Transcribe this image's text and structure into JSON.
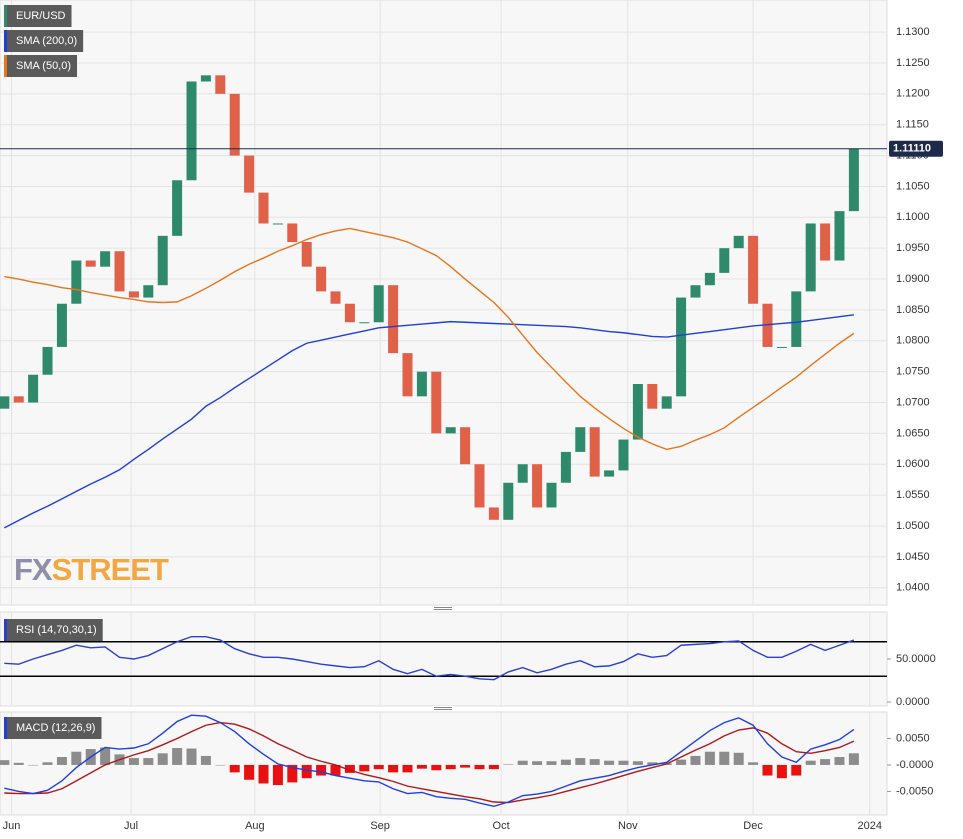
{
  "chart_data": [
    {
      "type": "candlestick",
      "first_open": 1.069,
      "xlim": [
        -0.3,
        61.3
      ],
      "xticks": [
        {
          "value": 0.5,
          "label": "Jun"
        },
        {
          "value": 8.8,
          "label": "Jul"
        },
        {
          "value": 17.4,
          "label": "Aug"
        },
        {
          "value": 26.1,
          "label": "Sep"
        },
        {
          "value": 34.5,
          "label": "Oct"
        },
        {
          "value": 43.3,
          "label": "Nov"
        },
        {
          "value": 52,
          "label": "Dec"
        },
        {
          "value": 60.1,
          "label": "2024"
        }
      ],
      "ylim": [
        1.0372,
        1.1352
      ],
      "yticks": [
        {
          "value": 1.13,
          "label": "1.1300"
        },
        {
          "value": 1.125,
          "label": "1.1250"
        },
        {
          "value": 1.12,
          "label": "1.1200"
        },
        {
          "value": 1.115,
          "label": "1.1150"
        },
        {
          "value": 1.11,
          "label": "1.1100"
        },
        {
          "value": 1.105,
          "label": "1.1050"
        },
        {
          "value": 1.1,
          "label": "1.1000"
        },
        {
          "value": 1.095,
          "label": "1.0950"
        },
        {
          "value": 1.09,
          "label": "1.0900"
        },
        {
          "value": 1.085,
          "label": "1.0850"
        },
        {
          "value": 1.08,
          "label": "1.0800"
        },
        {
          "value": 1.075,
          "label": "1.0750"
        },
        {
          "value": 1.07,
          "label": "1.0700"
        },
        {
          "value": 1.065,
          "label": "1.0650"
        },
        {
          "value": 1.06,
          "label": "1.0600"
        },
        {
          "value": 1.055,
          "label": "1.0550"
        },
        {
          "value": 1.05,
          "label": "1.0500"
        },
        {
          "value": 1.045,
          "label": "1.0450"
        },
        {
          "value": 1.04,
          "label": "1.0400"
        }
      ],
      "grid": true,
      "last_value": {
        "value": 1.1111,
        "label": "1.11110"
      },
      "watermark": [
        "FX",
        "STREET"
      ],
      "series": [
        {
          "name": "EUR/USD",
          "color": "#2f8a6b",
          "down_color": "#e0604a",
          "values": [
            1.071,
            1.07,
            1.0745,
            1.079,
            1.086,
            1.093,
            1.092,
            1.0945,
            1.088,
            1.087,
            1.089,
            1.097,
            1.106,
            1.122,
            1.123,
            1.12,
            1.11,
            1.104,
            1.099,
            1.099,
            1.096,
            1.092,
            1.088,
            1.086,
            1.083,
            1.083,
            1.089,
            1.078,
            1.071,
            1.075,
            1.065,
            1.066,
            1.06,
            1.053,
            1.051,
            1.057,
            1.06,
            1.053,
            1.057,
            1.062,
            1.066,
            1.058,
            1.059,
            1.064,
            1.073,
            1.069,
            1.071,
            1.087,
            1.089,
            1.091,
            1.095,
            1.097,
            1.086,
            1.079,
            1.079,
            1.088,
            1.099,
            1.093,
            1.101,
            1.1111
          ]
        },
        {
          "name": "SMA (200,0)",
          "color": "#1f3fd6",
          "values": [
            1.0497,
            1.0509,
            1.0521,
            1.0532,
            1.0544,
            1.0556,
            1.0568,
            1.0579,
            1.0591,
            1.0608,
            1.0624,
            1.0641,
            1.0657,
            1.0673,
            1.0694,
            1.0708,
            1.0724,
            1.0739,
            1.0754,
            1.0769,
            1.0784,
            1.0796,
            1.0801,
            1.0806,
            1.0811,
            1.0816,
            1.0821,
            1.0823,
            1.0825,
            1.0827,
            1.0829,
            1.0831,
            1.083,
            1.0829,
            1.0828,
            1.0827,
            1.0826,
            1.0825,
            1.0824,
            1.0823,
            1.0821,
            1.0818,
            1.0815,
            1.0813,
            1.081,
            1.0807,
            1.0806,
            1.0809,
            1.0812,
            1.0815,
            1.0818,
            1.0821,
            1.0824,
            1.0826,
            1.0828,
            1.083,
            1.0833,
            1.0836,
            1.0839,
            1.0842
          ]
        },
        {
          "name": "SMA (50,0)",
          "color": "#e8751a",
          "values": [
            1.0904,
            1.09,
            1.0895,
            1.0891,
            1.0886,
            1.0883,
            1.0878,
            1.0874,
            1.087,
            1.0867,
            1.0863,
            1.0862,
            1.0863,
            1.0873,
            1.0885,
            1.0898,
            1.0912,
            1.0924,
            1.0934,
            1.0945,
            1.0954,
            1.0964,
            1.0972,
            1.0978,
            1.0982,
            1.0977,
            1.0972,
            1.0967,
            1.096,
            1.0949,
            1.0938,
            1.092,
            1.09,
            1.0881,
            1.0862,
            1.0838,
            1.0809,
            1.0781,
            1.0757,
            1.0733,
            1.071,
            1.0691,
            1.0674,
            1.0658,
            1.0644,
            1.0633,
            1.0624,
            1.0629,
            1.0639,
            1.0648,
            1.0659,
            1.0676,
            1.0692,
            1.0708,
            1.0725,
            1.0741,
            1.076,
            1.0778,
            1.0796,
            1.0812
          ]
        }
      ]
    },
    {
      "type": "line",
      "ylim": [
        0,
        100
      ],
      "yticks": [
        {
          "value": 50,
          "label": "50.0000"
        },
        {
          "value": 0,
          "label": "0.0000"
        }
      ],
      "levels": [
        70,
        30
      ],
      "series": [
        {
          "name": "RSI (14,70,30,1)",
          "color": "#2a3fd0",
          "values": [
            45,
            44,
            50,
            55,
            60,
            66,
            63,
            64,
            52,
            50,
            54,
            62,
            70,
            76,
            76,
            72,
            62,
            56,
            52,
            52,
            50,
            47,
            44,
            42,
            40,
            41,
            48,
            38,
            33,
            38,
            30,
            32,
            30,
            27,
            26,
            35,
            40,
            34,
            38,
            44,
            48,
            41,
            42,
            47,
            56,
            52,
            54,
            66,
            67,
            68,
            70,
            71,
            60,
            52,
            52,
            59,
            67,
            60,
            66,
            72
          ]
        }
      ]
    },
    {
      "type": "macd",
      "ylim": [
        -0.009,
        0.01
      ],
      "yticks": [
        {
          "value": 0.005,
          "label": "0.0050"
        },
        {
          "value": 0,
          "label": "-0.0000"
        },
        {
          "value": -0.005,
          "label": "-0.0050"
        }
      ],
      "series": [
        {
          "name": "MACD (12,26,9)",
          "color": "#1f3fe0",
          "values": [
            -0.0044,
            -0.005,
            -0.0054,
            -0.0048,
            -0.003,
            -0.0005,
            0.0015,
            0.0033,
            0.003,
            0.0032,
            0.004,
            0.006,
            0.0082,
            0.0094,
            0.0092,
            0.008,
            0.0063,
            0.004,
            0.002,
            0.0002,
            -0.0005,
            -0.001,
            -0.0013,
            -0.002,
            -0.0025,
            -0.003,
            -0.0032,
            -0.0045,
            -0.0054,
            -0.0052,
            -0.006,
            -0.0063,
            -0.0065,
            -0.0072,
            -0.0078,
            -0.007,
            -0.0058,
            -0.0055,
            -0.005,
            -0.004,
            -0.003,
            -0.0025,
            -0.002,
            -0.0012,
            -0.0005,
            0.0,
            0.0005,
            0.0025,
            0.0045,
            0.0065,
            0.008,
            0.0089,
            0.0075,
            0.004,
            0.0015,
            0.0005,
            0.003,
            0.0038,
            0.0048,
            0.0067
          ]
        },
        {
          "color": "#b01818",
          "values": [
            -0.0053,
            -0.0054,
            -0.0054,
            -0.0053,
            -0.0045,
            -0.003,
            -0.0015,
            0.0,
            0.001,
            0.0019,
            0.0027,
            0.0038,
            0.005,
            0.0063,
            0.0075,
            0.008,
            0.0077,
            0.0068,
            0.0055,
            0.004,
            0.0028,
            0.0015,
            0.0007,
            0.0,
            -0.001,
            -0.0018,
            -0.0024,
            -0.0031,
            -0.004,
            -0.0045,
            -0.005,
            -0.0055,
            -0.006,
            -0.0064,
            -0.007,
            -0.0071,
            -0.0066,
            -0.0062,
            -0.0057,
            -0.005,
            -0.0043,
            -0.0036,
            -0.0028,
            -0.002,
            -0.0012,
            -0.0005,
            0.0002,
            0.0015,
            0.0028,
            0.004,
            0.0055,
            0.0066,
            0.007,
            0.006,
            0.004,
            0.0025,
            0.0022,
            0.0027,
            0.0033,
            0.0045
          ]
        },
        {
          "color": "#8c8c8c",
          "down_color": "#e81010",
          "values": [
            0.0009,
            0.0004,
            0,
            0.0005,
            0.0015,
            0.0025,
            0.003,
            0.0033,
            0.002,
            0.0013,
            0.0013,
            0.0022,
            0.0032,
            0.0031,
            0.0017,
            0,
            -0.0014,
            -0.0028,
            -0.0035,
            -0.0038,
            -0.0033,
            -0.0025,
            -0.002,
            -0.002,
            -0.0015,
            -0.0012,
            -0.0008,
            -0.0014,
            -0.0014,
            -0.0007,
            -0.001,
            -0.0008,
            -0.0005,
            -0.0008,
            -0.0008,
            0.0001,
            0.0008,
            0.0007,
            0.0007,
            0.001,
            0.0013,
            0.0011,
            0.0008,
            0.0008,
            0.0007,
            0.0005,
            0.0003,
            0.001,
            0.0017,
            0.0025,
            0.0025,
            0.0023,
            0.0005,
            -0.002,
            -0.0025,
            -0.002,
            0.0008,
            0.0011,
            0.0015,
            0.0022
          ]
        }
      ]
    }
  ]
}
